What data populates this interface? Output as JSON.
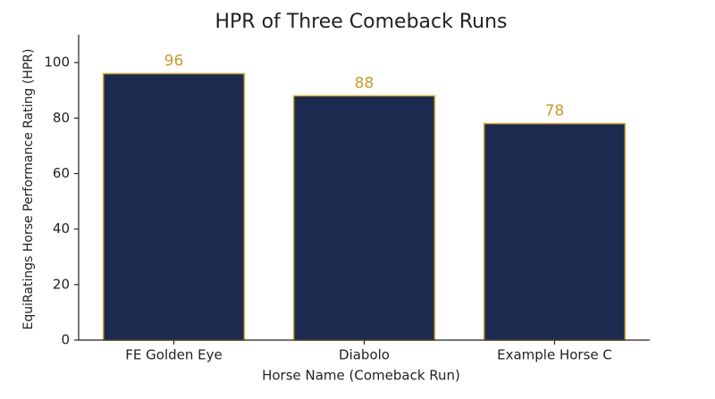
{
  "chart_data": {
    "type": "bar",
    "title": "HPR of Three Comeback Runs",
    "x_label": "Horse Name (Comeback Run)",
    "y_label": "EquiRatings Horse Performance Rating (HPR)",
    "categories": [
      "FE Golden Eye",
      "Diabolo",
      "Example Horse C"
    ],
    "values": [
      96,
      88,
      78
    ],
    "color": "#1b2a4e",
    "edge_color": "#d4a22f",
    "label_color": "#c99a2e",
    "ylim": [
      0,
      110
    ],
    "yticks": [
      0,
      20,
      40,
      60,
      80,
      100
    ],
    "grid": false
  }
}
